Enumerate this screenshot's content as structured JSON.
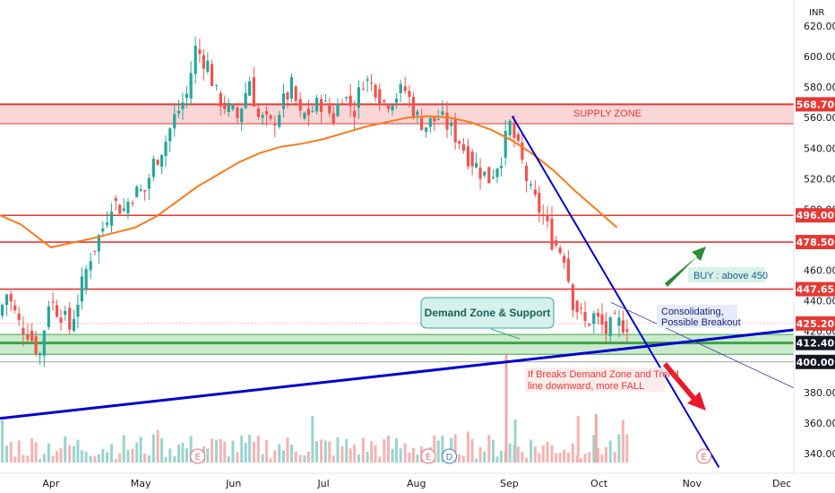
{
  "currency": "INR",
  "colors": {
    "bull": "#26a69a",
    "bear": "#ef5350",
    "sma": "#f57c1f",
    "zone_red": "#e53935",
    "zone_green": "#43a047",
    "trend": "#0000cc",
    "label_bg_red": "#e53935",
    "label_bg_dark": "#131722"
  },
  "chart_data": {
    "type": "candlestick",
    "ylim": [
      330,
      630
    ],
    "y_ticks": [
      "620.00",
      "600.00",
      "580.00",
      "560.00",
      "540.00",
      "520.00",
      "500.00",
      "480.00",
      "460.00",
      "440.00",
      "420.00",
      "400.00",
      "380.00",
      "360.00",
      "340.00"
    ],
    "x_labels": [
      "Apr",
      "May",
      "Jun",
      "Jul",
      "Aug",
      "Sep",
      "Oct",
      "Nov",
      "Dec"
    ],
    "x_range": [
      "2021-03-15",
      "2021-12-05"
    ],
    "x_label_dates": [
      "2021-04-01",
      "2021-05-01",
      "2021-06-01",
      "2021-07-01",
      "2021-08-01",
      "2021-09-01",
      "2021-10-01",
      "2021-11-01",
      "2021-12-01"
    ],
    "price_levels": [
      {
        "label": "568.70",
        "value": 568.7,
        "style": "red"
      },
      {
        "label": "496.00",
        "value": 496.0,
        "style": "red-line"
      },
      {
        "label": "478.50",
        "value": 478.5,
        "style": "red-line"
      },
      {
        "label": "447.65",
        "value": 447.65,
        "style": "red-line"
      },
      {
        "label": "425.20",
        "value": 425.2,
        "style": "red"
      },
      {
        "label": "412.40",
        "value": 412.4,
        "style": "dark"
      },
      {
        "label": "400.00",
        "value": 400.0,
        "style": "dark"
      }
    ],
    "supply_zone": {
      "from": 556,
      "to": 568.7,
      "label": "SUPPLY ZONE"
    },
    "demand_zone": {
      "from": 405,
      "to": 418,
      "inner": 412.4
    },
    "series_close": [
      [
        "2021-03-15",
        430
      ],
      [
        "2021-03-18",
        445
      ],
      [
        "2021-03-22",
        425
      ],
      [
        "2021-03-25",
        420
      ],
      [
        "2021-03-29",
        405
      ],
      [
        "2021-04-01",
        440
      ],
      [
        "2021-04-05",
        432
      ],
      [
        "2021-04-08",
        422
      ],
      [
        "2021-04-12",
        450
      ],
      [
        "2021-04-15",
        470
      ],
      [
        "2021-04-19",
        488
      ],
      [
        "2021-04-22",
        505
      ],
      [
        "2021-04-26",
        500
      ],
      [
        "2021-04-29",
        510
      ],
      [
        "2021-05-03",
        512
      ],
      [
        "2021-05-06",
        530
      ],
      [
        "2021-05-10",
        545
      ],
      [
        "2021-05-13",
        560
      ],
      [
        "2021-05-17",
        575
      ],
      [
        "2021-05-20",
        605
      ],
      [
        "2021-05-24",
        595
      ],
      [
        "2021-05-27",
        575
      ],
      [
        "2021-05-31",
        565
      ],
      [
        "2021-06-03",
        560
      ],
      [
        "2021-06-07",
        585
      ],
      [
        "2021-06-10",
        560
      ],
      [
        "2021-06-14",
        555
      ],
      [
        "2021-06-17",
        565
      ],
      [
        "2021-06-21",
        580
      ],
      [
        "2021-06-24",
        560
      ],
      [
        "2021-06-28",
        565
      ],
      [
        "2021-07-01",
        570
      ],
      [
        "2021-07-05",
        560
      ],
      [
        "2021-07-08",
        575
      ],
      [
        "2021-07-12",
        565
      ],
      [
        "2021-07-15",
        585
      ],
      [
        "2021-07-19",
        580
      ],
      [
        "2021-07-22",
        570
      ],
      [
        "2021-07-26",
        575
      ],
      [
        "2021-07-29",
        578
      ],
      [
        "2021-08-02",
        560
      ],
      [
        "2021-08-05",
        555
      ],
      [
        "2021-08-09",
        560
      ],
      [
        "2021-08-12",
        555
      ],
      [
        "2021-08-16",
        545
      ],
      [
        "2021-08-19",
        535
      ],
      [
        "2021-08-23",
        525
      ],
      [
        "2021-08-26",
        520
      ],
      [
        "2021-08-30",
        535
      ],
      [
        "2021-09-02",
        555
      ],
      [
        "2021-09-06",
        530
      ],
      [
        "2021-09-09",
        510
      ],
      [
        "2021-09-13",
        495
      ],
      [
        "2021-09-16",
        480
      ],
      [
        "2021-09-20",
        470
      ],
      [
        "2021-09-23",
        440
      ],
      [
        "2021-09-27",
        425
      ],
      [
        "2021-09-30",
        430
      ],
      [
        "2021-10-04",
        420
      ],
      [
        "2021-10-07",
        425
      ],
      [
        "2021-10-11",
        425
      ]
    ],
    "sma": [
      [
        "2021-03-15",
        496
      ],
      [
        "2021-03-22",
        490
      ],
      [
        "2021-04-01",
        475
      ],
      [
        "2021-04-08",
        478
      ],
      [
        "2021-04-15",
        481
      ],
      [
        "2021-04-29",
        488
      ],
      [
        "2021-05-06",
        495
      ],
      [
        "2021-05-13",
        505
      ],
      [
        "2021-05-20",
        515
      ],
      [
        "2021-05-27",
        523
      ],
      [
        "2021-06-03",
        531
      ],
      [
        "2021-06-10",
        537
      ],
      [
        "2021-06-17",
        541
      ],
      [
        "2021-06-24",
        543
      ],
      [
        "2021-07-01",
        546
      ],
      [
        "2021-07-08",
        550
      ],
      [
        "2021-07-15",
        554
      ],
      [
        "2021-07-22",
        557
      ],
      [
        "2021-07-29",
        560
      ],
      [
        "2021-08-05",
        561
      ],
      [
        "2021-08-12",
        560
      ],
      [
        "2021-08-19",
        557
      ],
      [
        "2021-08-26",
        552
      ],
      [
        "2021-09-02",
        545
      ],
      [
        "2021-09-09",
        536
      ],
      [
        "2021-09-16",
        525
      ],
      [
        "2021-09-23",
        512
      ],
      [
        "2021-09-30",
        500
      ],
      [
        "2021-10-07",
        488
      ]
    ],
    "trendlines": [
      {
        "from": [
          "2021-03-15",
          363
        ],
        "to": [
          "2021-12-05",
          421
        ],
        "width": 3
      },
      {
        "from": [
          "2021-09-02",
          561
        ],
        "to": [
          "2021-11-10",
          331
        ],
        "width": 2
      },
      {
        "from": [
          "2021-10-05",
          439
        ],
        "to": [
          "2021-12-05",
          383
        ],
        "width": 0.8
      }
    ],
    "annotations": [
      {
        "text": "Demand Zone & Support"
      },
      {
        "text": "BUY : above 450"
      },
      {
        "text": "Consolidating,"
      },
      {
        "text": "Possible Breakout"
      },
      {
        "text": "If Breaks Demand Zone and Trend"
      },
      {
        "text": "line downward, more FALL"
      }
    ],
    "event_markers": [
      {
        "label": "E",
        "date": "2021-05-20"
      },
      {
        "label": "E",
        "date": "2021-08-05"
      },
      {
        "label": "D",
        "date": "2021-08-12"
      },
      {
        "label": "E",
        "date": "2021-11-05"
      }
    ]
  }
}
